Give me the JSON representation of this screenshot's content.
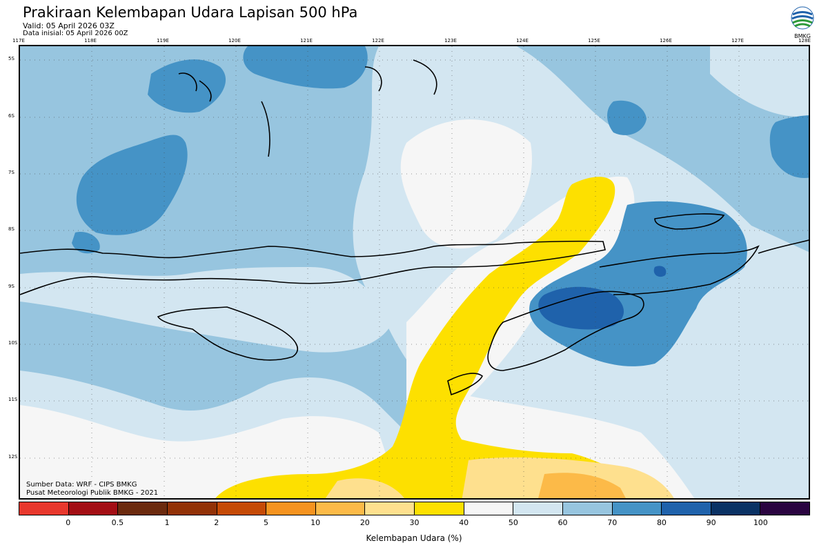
{
  "header": {
    "title": "Prakiraan Kelembapan Udara Lapisan 500 hPa",
    "valid": "Valid: 05 April 2026 03Z",
    "initial": "Data inisial: 05 April 2026 00Z",
    "logo_text": "BMKG"
  },
  "map": {
    "lon_labels": [
      "117E",
      "118E",
      "119E",
      "120E",
      "121E",
      "122E",
      "123E",
      "124E",
      "125E",
      "126E",
      "127E",
      "128E"
    ],
    "lat_labels": [
      "5S",
      "6S",
      "7S",
      "8S",
      "9S",
      "10S",
      "11S",
      "12S"
    ]
  },
  "credits": {
    "source": "Sumber Data: WRF - CIPS BMKG",
    "publisher": "Pusat Meteorologi Publik BMKG - 2021"
  },
  "legend": {
    "title": "Kelembapan Udara (%)",
    "ticks": [
      "0",
      "0.5",
      "1",
      "2",
      "5",
      "10",
      "20",
      "30",
      "40",
      "50",
      "60",
      "70",
      "80",
      "90",
      "100"
    ],
    "colors": [
      "#e8382d",
      "#a30e14",
      "#6b2a0e",
      "#923207",
      "#c54a06",
      "#f5931f",
      "#fcba48",
      "#fee08e",
      "#fde000",
      "#f6f6f6",
      "#d3e6f1",
      "#97c5df",
      "#4593c6",
      "#1f62ab",
      "#0a3264",
      "#2a0440"
    ]
  }
}
